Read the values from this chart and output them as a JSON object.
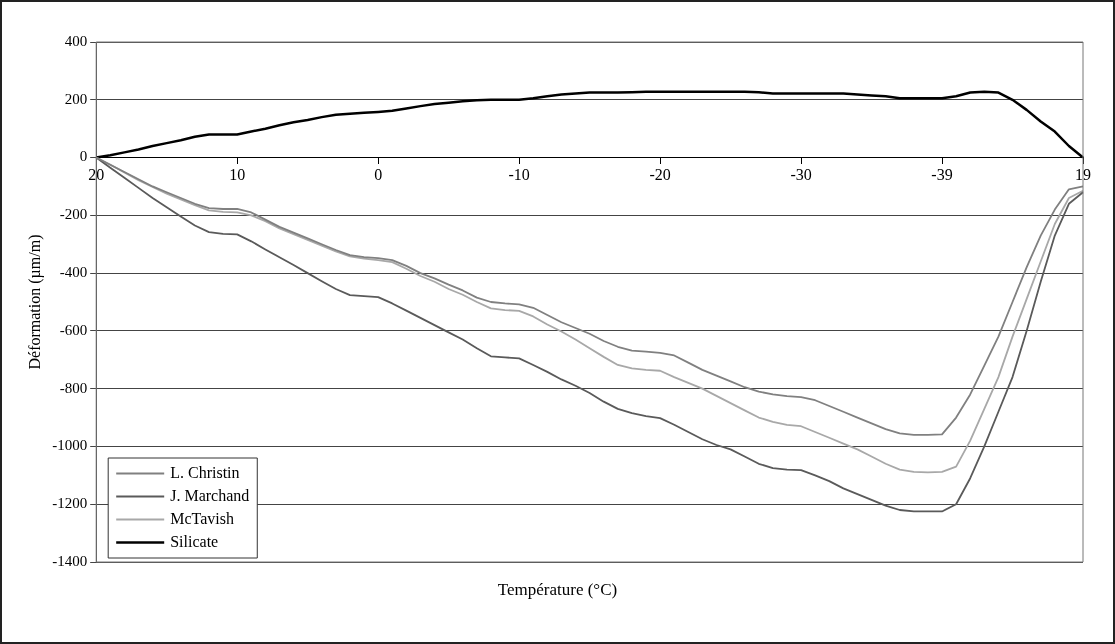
{
  "chart_data": {
    "type": "line",
    "xlabel": "Température (°C)",
    "ylabel": "Déformation (µm/m)",
    "categories": [
      "20",
      null,
      null,
      null,
      null,
      null,
      null,
      null,
      null,
      null,
      "10",
      null,
      null,
      null,
      null,
      null,
      null,
      null,
      null,
      null,
      "0",
      null,
      null,
      null,
      null,
      null,
      null,
      null,
      null,
      null,
      "-10",
      null,
      null,
      null,
      null,
      null,
      null,
      null,
      null,
      null,
      "-20",
      null,
      null,
      null,
      null,
      null,
      null,
      null,
      null,
      null,
      "-30",
      null,
      null,
      null,
      null,
      null,
      null,
      null,
      null,
      null,
      "-39",
      null,
      null,
      null,
      null,
      null,
      null,
      null,
      null,
      null,
      "19"
    ],
    "series": [
      {
        "name": "L. Christin",
        "color": "#808080",
        "values": [
          0,
          -25,
          -50,
          -75,
          -100,
          -120,
          -140,
          -160,
          -175,
          -178,
          -178,
          -190,
          -215,
          -240,
          -260,
          -280,
          -300,
          -320,
          -338,
          -345,
          -348,
          -355,
          -375,
          -400,
          -418,
          -440,
          -460,
          -485,
          -500,
          -505,
          -508,
          -520,
          -545,
          -570,
          -590,
          -610,
          -635,
          -655,
          -668,
          -672,
          -676,
          -685,
          -710,
          -735,
          -755,
          -775,
          -795,
          -810,
          -820,
          -826,
          -829,
          -840,
          -860,
          -880,
          -900,
          -920,
          -940,
          -955,
          -960,
          -960,
          -958,
          -900,
          -820,
          -720,
          -620,
          -500,
          -380,
          -270,
          -180,
          -110,
          -100
        ]
      },
      {
        "name": "J. Marchand",
        "color": "#5a5a5a",
        "values": [
          0,
          -35,
          -70,
          -105,
          -140,
          -172,
          -204,
          -235,
          -258,
          -264,
          -266,
          -290,
          -318,
          -345,
          -372,
          -400,
          -428,
          -455,
          -476,
          -480,
          -483,
          -505,
          -530,
          -555,
          -580,
          -605,
          -630,
          -660,
          -688,
          -692,
          -695,
          -718,
          -742,
          -768,
          -790,
          -815,
          -845,
          -870,
          -885,
          -895,
          -902,
          -925,
          -950,
          -975,
          -995,
          -1010,
          -1035,
          -1060,
          -1075,
          -1080,
          -1082,
          -1100,
          -1120,
          -1145,
          -1165,
          -1185,
          -1205,
          -1220,
          -1225,
          -1225,
          -1225,
          -1200,
          -1110,
          -1000,
          -880,
          -760,
          -600,
          -430,
          -270,
          -160,
          -120
        ]
      },
      {
        "name": "McTavish",
        "color": "#a8a8a8",
        "values": [
          0,
          -25,
          -52,
          -78,
          -102,
          -125,
          -145,
          -165,
          -183,
          -188,
          -190,
          -200,
          -220,
          -245,
          -265,
          -285,
          -305,
          -325,
          -342,
          -350,
          -355,
          -362,
          -385,
          -410,
          -430,
          -455,
          -475,
          -500,
          -522,
          -528,
          -531,
          -550,
          -578,
          -602,
          -630,
          -660,
          -690,
          -718,
          -730,
          -735,
          -738,
          -760,
          -780,
          -800,
          -825,
          -850,
          -875,
          -900,
          -915,
          -925,
          -930,
          -950,
          -970,
          -990,
          -1010,
          -1035,
          -1060,
          -1080,
          -1088,
          -1090,
          -1088,
          -1070,
          -980,
          -870,
          -760,
          -620,
          -490,
          -360,
          -230,
          -140,
          -115
        ]
      },
      {
        "name": "Silicate",
        "color": "#000000",
        "values": [
          0,
          8,
          18,
          28,
          40,
          50,
          60,
          72,
          80,
          80,
          80,
          90,
          100,
          112,
          122,
          130,
          140,
          148,
          152,
          155,
          158,
          162,
          170,
          178,
          185,
          190,
          195,
          198,
          200,
          200,
          200,
          205,
          212,
          218,
          222,
          225,
          225,
          225,
          226,
          228,
          228,
          228,
          228,
          228,
          228,
          228,
          228,
          226,
          222,
          222,
          222,
          222,
          222,
          222,
          218,
          215,
          212,
          205,
          205,
          205,
          205,
          212,
          225,
          228,
          225,
          200,
          165,
          125,
          90,
          40,
          0
        ]
      }
    ],
    "ylim": [
      -1400,
      400
    ],
    "yticks": [
      -1400,
      -1200,
      -1000,
      -800,
      -600,
      -400,
      -200,
      0,
      200,
      400
    ],
    "grid": "y",
    "legend": "bottom left",
    "marker": "none",
    "line_style": "solid"
  }
}
